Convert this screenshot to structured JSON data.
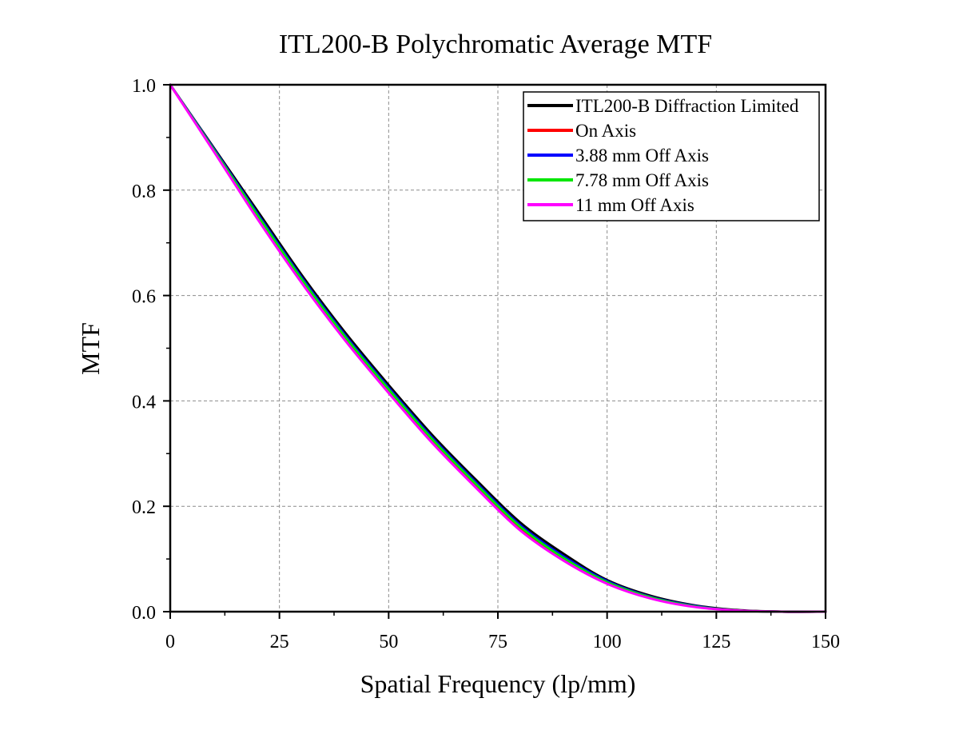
{
  "chart_data": {
    "type": "line",
    "title": "ITL200-B Polychromatic Average MTF",
    "xlabel": "Spatial Frequency (lp/mm)",
    "ylabel": "MTF",
    "xlim": [
      0,
      150
    ],
    "ylim": [
      0,
      1
    ],
    "xticks": [
      0,
      25,
      50,
      75,
      100,
      125,
      150
    ],
    "xtick_labels": [
      "0",
      "25",
      "50",
      "75",
      "100",
      "125",
      "150"
    ],
    "yticks": [
      0,
      0.2,
      0.4,
      0.6,
      0.8,
      1.0
    ],
    "ytick_labels": [
      "0.0",
      "0.2",
      "0.4",
      "0.6",
      "0.8",
      "1.0"
    ],
    "grid": true,
    "legend_position": "top-right",
    "x": [
      0,
      10,
      20,
      30,
      40,
      50,
      60,
      70,
      80,
      90,
      100,
      110,
      120,
      130,
      140,
      150
    ],
    "series": [
      {
        "name": "ITL200-B Diffraction Limited",
        "color": "#000000",
        "values": [
          1.0,
          0.88,
          0.76,
          0.64,
          0.53,
          0.43,
          0.335,
          0.25,
          0.17,
          0.11,
          0.06,
          0.03,
          0.012,
          0.003,
          0.0,
          0.0
        ]
      },
      {
        "name": "On Axis",
        "color": "#ff0000",
        "values": [
          1.0,
          0.875,
          0.75,
          0.63,
          0.52,
          0.42,
          0.325,
          0.24,
          0.16,
          0.1,
          0.055,
          0.027,
          0.01,
          0.002,
          0.0,
          0.0
        ]
      },
      {
        "name": "3.88 mm Off Axis",
        "color": "#0000ff",
        "values": [
          1.0,
          0.878,
          0.755,
          0.635,
          0.525,
          0.425,
          0.33,
          0.245,
          0.165,
          0.105,
          0.058,
          0.028,
          0.011,
          0.002,
          0.0,
          0.0
        ]
      },
      {
        "name": "7.78 mm Off Axis",
        "color": "#00e600",
        "values": [
          1.0,
          0.876,
          0.752,
          0.632,
          0.522,
          0.422,
          0.327,
          0.242,
          0.162,
          0.102,
          0.056,
          0.027,
          0.01,
          0.002,
          0.0,
          0.0
        ]
      },
      {
        "name": "11 mm Off Axis",
        "color": "#ff00ff",
        "values": [
          1.0,
          0.873,
          0.745,
          0.625,
          0.515,
          0.415,
          0.32,
          0.235,
          0.155,
          0.097,
          0.053,
          0.025,
          0.009,
          0.002,
          0.0,
          0.0
        ]
      }
    ]
  }
}
